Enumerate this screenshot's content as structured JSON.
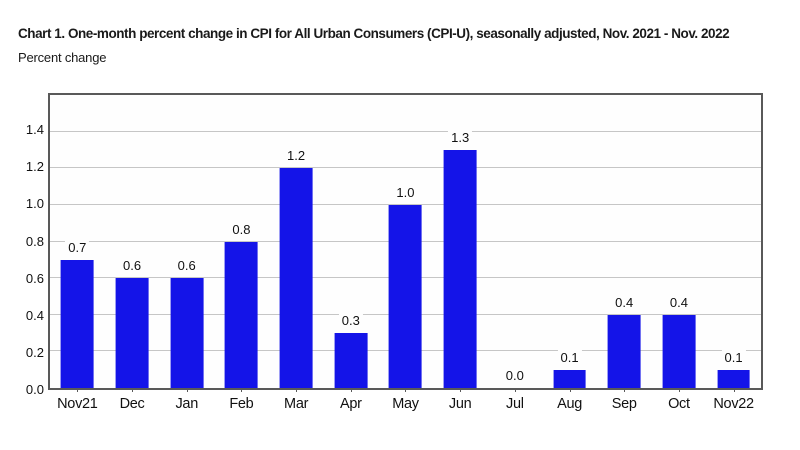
{
  "header": {
    "title": "Chart 1. One-month percent change in CPI for All Urban Consumers (CPI-U), seasonally adjusted, Nov. 2021 - Nov. 2022",
    "subtitle": "Percent change"
  },
  "colors": {
    "bar": "#1414e8",
    "gridline": "#c6c6c6",
    "plot_border": "#595959",
    "text": "#111111",
    "background": "#ffffff"
  },
  "chart_data": {
    "type": "bar",
    "title": "Chart 1. One-month percent change in CPI for All Urban Consumers (CPI-U), seasonally adjusted, Nov. 2021 - Nov. 2022",
    "xlabel": "",
    "ylabel": "Percent change",
    "categories": [
      "Nov21",
      "Dec",
      "Jan",
      "Feb",
      "Mar",
      "Apr",
      "May",
      "Jun",
      "Jul",
      "Aug",
      "Sep",
      "Oct",
      "Nov22"
    ],
    "values": [
      0.7,
      0.6,
      0.6,
      0.8,
      1.2,
      0.3,
      1.0,
      1.3,
      0.0,
      0.1,
      0.4,
      0.4,
      0.1
    ],
    "value_labels": [
      "0.7",
      "0.6",
      "0.6",
      "0.8",
      "1.2",
      "0.3",
      "1.0",
      "1.3",
      "0.0",
      "0.1",
      "0.4",
      "0.4",
      "0.1"
    ],
    "ylim": [
      0,
      1.6
    ],
    "yticks": [
      0.0,
      0.2,
      0.4,
      0.6,
      0.8,
      1.0,
      1.2,
      1.4
    ],
    "grid": true,
    "legend": false
  }
}
